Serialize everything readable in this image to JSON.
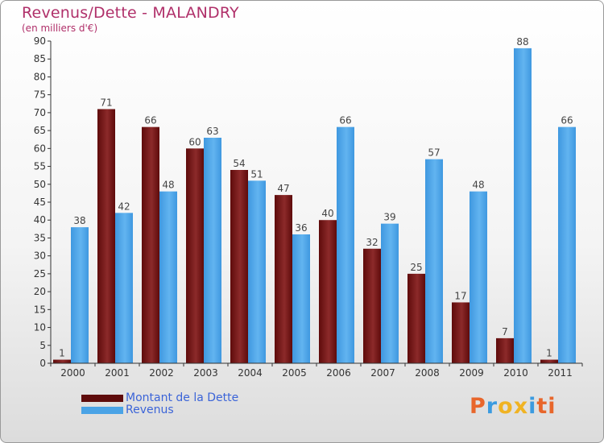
{
  "header": {
    "title": "Revenus/Dette - MALANDRY",
    "subtitle": "(en milliers d'€)"
  },
  "chart_data": {
    "type": "bar",
    "categories": [
      "2000",
      "2001",
      "2002",
      "2003",
      "2004",
      "2005",
      "2006",
      "2007",
      "2008",
      "2009",
      "2010",
      "2011"
    ],
    "series": [
      {
        "name": "Montant de la Dette",
        "color": "#7a1a1a",
        "values": [
          1,
          71,
          66,
          60,
          54,
          47,
          40,
          32,
          25,
          17,
          7,
          1
        ]
      },
      {
        "name": "Revenus",
        "color": "#4aa3e6",
        "values": [
          38,
          42,
          48,
          63,
          51,
          36,
          66,
          39,
          57,
          48,
          88,
          66
        ]
      }
    ],
    "ylim": [
      0,
      90
    ],
    "yticks": [
      "0",
      "5",
      "10",
      "15",
      "20",
      "25",
      "30",
      "35",
      "40",
      "45",
      "50",
      "55",
      "60",
      "65",
      "70",
      "75",
      "80",
      "85",
      "90"
    ],
    "grid": false,
    "legend": "bottom-left"
  },
  "logo": {
    "text": "Proxiti",
    "colors": [
      "#e8662b",
      "#3b9be0",
      "#f0b323",
      "#f0b323",
      "#3b9be0",
      "#e8662b",
      "#e8662b"
    ]
  }
}
